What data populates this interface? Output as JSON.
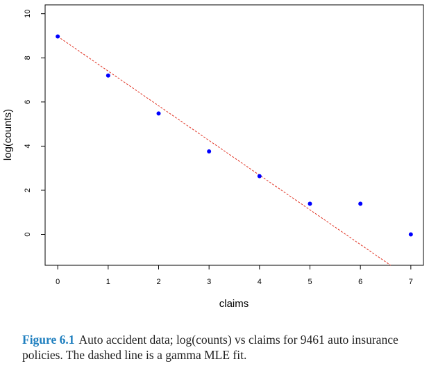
{
  "chart_data": {
    "type": "scatter",
    "xlabel": "claims",
    "ylabel": "log(counts)",
    "xlim": [
      -0.25,
      7.25
    ],
    "ylim": [
      -1.4,
      10.4
    ],
    "x_ticks": [
      0,
      1,
      2,
      3,
      4,
      5,
      6,
      7
    ],
    "y_ticks": [
      0,
      2,
      4,
      6,
      8,
      10
    ],
    "grid": false,
    "points": {
      "x": [
        0,
        1,
        2,
        3,
        4,
        5,
        6,
        7
      ],
      "y": [
        8.97,
        7.2,
        5.48,
        3.76,
        2.64,
        1.39,
        1.39,
        0.0
      ],
      "color": "#0000ff"
    },
    "fit_line": {
      "style": "dashed",
      "color": "#e03020",
      "x": [
        0,
        6.6
      ],
      "y": [
        8.97,
        -1.4
      ]
    }
  },
  "caption": {
    "label": "Figure 6.1",
    "text": "Auto accident data; log(counts) vs claims for 9461 auto insurance policies. The dashed line is a gamma MLE fit."
  }
}
